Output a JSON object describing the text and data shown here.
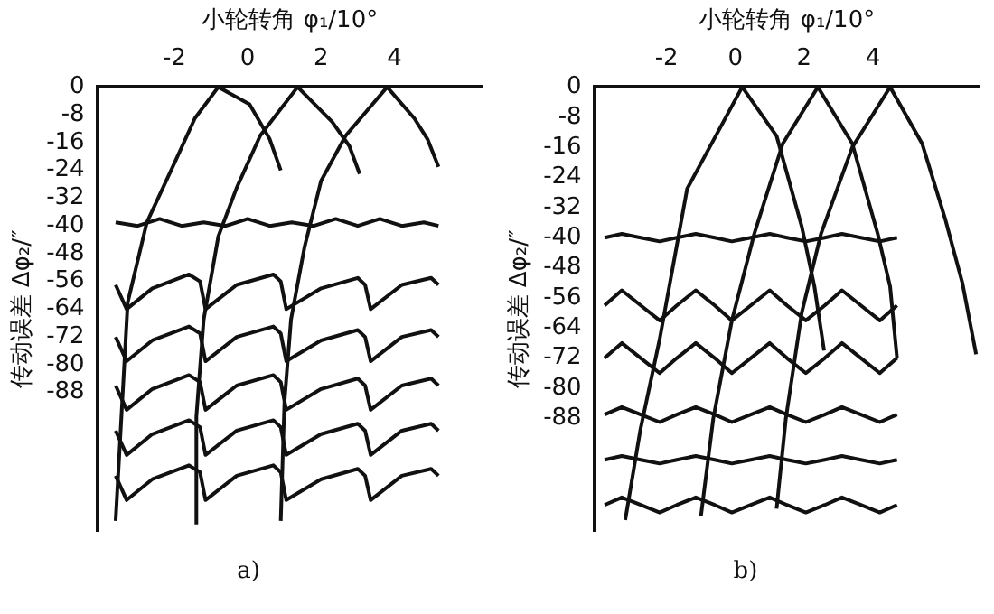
{
  "chart_data": [
    {
      "type": "line",
      "xlabel": "小轮转角 φ₁/10°",
      "ylabel": "传动误差 Δφ₂/″",
      "annotations": [
        "a)"
      ],
      "xlim": [
        -4.1,
        6.4
      ],
      "xticks": [
        -2,
        0,
        2,
        4
      ],
      "ylim": [
        -128,
        0
      ],
      "yticks": [
        0,
        -8,
        -16,
        -24,
        -32,
        -40,
        -48,
        -56,
        -64,
        -72,
        -80,
        -88
      ],
      "grid": false,
      "legend": false,
      "marker": "none",
      "x": [
        -3.6,
        -3.3,
        -2.6,
        -1.6,
        -1.3,
        -1.15,
        -0.3,
        0.7,
        0.9,
        1.05,
        2.0,
        3.0,
        3.2,
        3.35,
        4.2,
        5.0,
        5.2
      ],
      "series": [
        {
          "color": "#111111",
          "x": [
            -3.6,
            -3.27,
            -2.75,
            -2.0,
            -1.44,
            -0.8,
            0.05,
            0.6,
            0.9
          ],
          "values": [
            -125,
            -62,
            -39,
            -22,
            -9,
            0,
            -5,
            -15,
            -24
          ]
        },
        {
          "color": "#111111",
          "x": [
            -1.4,
            -1.4,
            -1.2,
            -0.8,
            -0.3,
            0.34,
            1.36,
            2.3,
            2.77,
            3.05
          ],
          "values": [
            -126,
            -95,
            -67,
            -43,
            -29,
            -14,
            0,
            -10,
            -17,
            -25
          ]
        },
        {
          "color": "#111111",
          "x": [
            0.9,
            1.0,
            1.18,
            1.55,
            2.0,
            2.67,
            3.8,
            4.54,
            4.9,
            5.2
          ],
          "values": [
            -125,
            -91,
            -67,
            -46,
            -27,
            -14,
            0,
            -9,
            -15,
            -23
          ]
        },
        {
          "color": "#111111",
          "x": [
            -3.6,
            -3.0,
            -2.4,
            -1.8,
            -1.2,
            -0.6,
            0,
            0.6,
            1.2,
            1.8,
            2.4,
            3.0,
            3.6,
            4.2,
            4.8,
            5.2
          ],
          "values": [
            -39,
            -40,
            -38,
            -40,
            -39,
            -40,
            -38,
            -40,
            -39,
            -40,
            -38,
            -40,
            -38,
            -40,
            -39,
            -40
          ]
        },
        {
          "color": "#111111",
          "values": [
            -57,
            -64,
            -58,
            -54,
            -56,
            -64,
            -57,
            -54,
            -56,
            -64,
            -58,
            -55,
            -57,
            -64,
            -57,
            -55,
            -57
          ]
        },
        {
          "color": "#111111",
          "values": [
            -72,
            -79,
            -73,
            -69,
            -71,
            -79,
            -72,
            -69,
            -71,
            -79,
            -73,
            -70,
            -72,
            -79,
            -72,
            -70,
            -72
          ]
        },
        {
          "color": "#111111",
          "values": [
            -86,
            -93,
            -87,
            -83,
            -85,
            -93,
            -86,
            -83,
            -85,
            -93,
            -87,
            -84,
            -86,
            -93,
            -86,
            -84,
            -86
          ]
        },
        {
          "color": "#111111",
          "values": [
            -99,
            -106,
            -100,
            -96,
            -98,
            -106,
            -99,
            -96,
            -98,
            -106,
            -100,
            -97,
            -99,
            -106,
            -99,
            -97,
            -99
          ]
        },
        {
          "color": "#111111",
          "values": [
            -112,
            -119,
            -113,
            -109,
            -111,
            -119,
            -112,
            -109,
            -111,
            -119,
            -113,
            -110,
            -112,
            -119,
            -112,
            -110,
            -112
          ]
        }
      ]
    },
    {
      "type": "line",
      "xlabel": "小轮转角 φ₁/10°",
      "ylabel": "传动误差 Δφ₂/″",
      "annotations": [
        "b)"
      ],
      "xlim": [
        -4.1,
        7.1
      ],
      "xticks": [
        -2,
        0,
        2,
        4
      ],
      "ylim": [
        -118,
        0
      ],
      "yticks": [
        0,
        -8,
        -16,
        -24,
        -32,
        -40,
        -48,
        -56,
        -64,
        -72,
        -80,
        -88
      ],
      "grid": false,
      "legend": false,
      "marker": "none",
      "x": [
        -3.8,
        -3.3,
        -2.75,
        -2.2,
        -1.7,
        -1.15,
        -0.6,
        -0.1,
        0.45,
        1.0,
        1.5,
        2.05,
        2.6,
        3.1,
        3.65,
        4.2,
        4.7
      ],
      "series": [
        {
          "color": "#111111",
          "x": [
            -3.2,
            -2.76,
            -2.2,
            -1.4,
            0.2,
            1.2,
            1.93,
            2.3,
            2.58
          ],
          "values": [
            -115,
            -91,
            -67,
            -27,
            0,
            -13,
            -37,
            -53,
            -70
          ]
        },
        {
          "color": "#111111",
          "x": [
            -1.0,
            -0.64,
            -0.1,
            0.55,
            1.38,
            2.4,
            3.4,
            4.14,
            4.5,
            4.7
          ],
          "values": [
            -114,
            -88,
            -62,
            -39,
            -15,
            0,
            -15,
            -39,
            -53,
            -72
          ]
        },
        {
          "color": "#111111",
          "x": [
            1.2,
            1.47,
            1.93,
            2.49,
            3.4,
            4.5,
            5.43,
            6.1,
            6.6,
            7.0
          ],
          "values": [
            -112,
            -88,
            -60,
            -39,
            -16,
            0,
            -15,
            -35,
            -52,
            -71
          ]
        },
        {
          "color": "#111111",
          "values": [
            -40,
            -39,
            -40,
            -41,
            -40,
            -39,
            -40,
            -41,
            -40,
            -39,
            -40,
            -41,
            -40,
            -39,
            -40,
            -41,
            -40
          ]
        },
        {
          "color": "#111111",
          "values": [
            -58,
            -54,
            -58,
            -62,
            -58,
            -54,
            -58,
            -62,
            -58,
            -54,
            -58,
            -62,
            -58,
            -54,
            -58,
            -62,
            -58
          ]
        },
        {
          "color": "#111111",
          "values": [
            -72,
            -68,
            -72,
            -76,
            -72,
            -68,
            -72,
            -76,
            -72,
            -68,
            -72,
            -76,
            -72,
            -68,
            -72,
            -76,
            -72
          ]
        },
        {
          "color": "#111111",
          "values": [
            -87,
            -85,
            -87,
            -89,
            -87,
            -85,
            -87,
            -89,
            -87,
            -85,
            -87,
            -89,
            -87,
            -85,
            -87,
            -89,
            -87
          ]
        },
        {
          "color": "#111111",
          "values": [
            -99,
            -98,
            -99,
            -100,
            -99,
            -98,
            -99,
            -100,
            -99,
            -98,
            -99,
            -100,
            -99,
            -98,
            -99,
            -100,
            -99
          ]
        },
        {
          "color": "#111111",
          "values": [
            -111,
            -109,
            -111,
            -113,
            -111,
            -109,
            -111,
            -113,
            -111,
            -109,
            -111,
            -113,
            -111,
            -109,
            -111,
            -113,
            -111
          ]
        }
      ]
    }
  ]
}
